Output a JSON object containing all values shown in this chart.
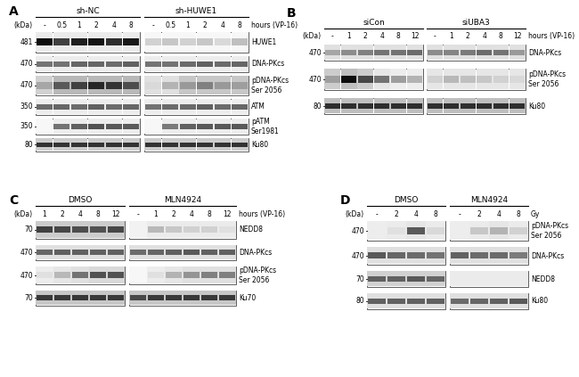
{
  "panel_A": {
    "label": "A",
    "group_labels": [
      "sh-NC",
      "sh-HUWE1"
    ],
    "time_labels": [
      "-",
      "0.5",
      "1",
      "2",
      "4",
      "8",
      "-",
      "0.5",
      "1",
      "2",
      "4",
      "8"
    ],
    "time_header": "hours (VP-16)",
    "blots": [
      {
        "kda": "481",
        "name": "HUWE1",
        "bg": [
          0.92,
          0.92,
          0.92,
          0.92,
          0.92,
          0.92,
          0.97,
          0.97,
          0.97,
          0.97,
          0.97,
          0.97
        ],
        "bands": [
          0.95,
          0.75,
          0.88,
          0.92,
          0.82,
          0.9,
          0.18,
          0.22,
          0.18,
          0.22,
          0.15,
          0.25
        ]
      },
      {
        "kda": "470",
        "name": "DNA-PKcs",
        "bg": [
          0.93,
          0.93,
          0.93,
          0.93,
          0.93,
          0.93,
          0.93,
          0.93,
          0.93,
          0.93,
          0.93,
          0.93
        ],
        "bands": [
          0.55,
          0.55,
          0.6,
          0.6,
          0.58,
          0.62,
          0.55,
          0.55,
          0.58,
          0.62,
          0.58,
          0.6
        ]
      },
      {
        "kda": "470",
        "name": "pDNA-PKcs\nSer 2056",
        "bg": [
          0.82,
          0.72,
          0.72,
          0.72,
          0.72,
          0.72,
          0.88,
          0.88,
          0.78,
          0.78,
          0.78,
          0.78
        ],
        "bands": [
          0.35,
          0.65,
          0.75,
          0.85,
          0.8,
          0.7,
          0.15,
          0.3,
          0.4,
          0.5,
          0.4,
          0.38
        ]
      },
      {
        "kda": "350",
        "name": "ATM",
        "bg": [
          0.93,
          0.93,
          0.93,
          0.93,
          0.93,
          0.93,
          0.93,
          0.93,
          0.93,
          0.93,
          0.93,
          0.93
        ],
        "bands": [
          0.58,
          0.6,
          0.58,
          0.62,
          0.58,
          0.6,
          0.55,
          0.58,
          0.58,
          0.62,
          0.58,
          0.6
        ]
      },
      {
        "kda": "350",
        "name": "pATM\nSer1981",
        "bg": [
          0.97,
          0.93,
          0.93,
          0.93,
          0.93,
          0.93,
          0.97,
          0.93,
          0.93,
          0.93,
          0.93,
          0.93
        ],
        "bands": [
          0.05,
          0.55,
          0.62,
          0.68,
          0.65,
          0.65,
          0.05,
          0.52,
          0.62,
          0.65,
          0.65,
          0.65
        ]
      },
      {
        "kda": "80",
        "name": "Ku80",
        "bg": [
          0.8,
          0.8,
          0.8,
          0.8,
          0.8,
          0.8,
          0.8,
          0.8,
          0.8,
          0.8,
          0.8,
          0.8
        ],
        "bands": [
          0.8,
          0.8,
          0.8,
          0.8,
          0.8,
          0.8,
          0.8,
          0.8,
          0.8,
          0.8,
          0.8,
          0.8
        ]
      }
    ]
  },
  "panel_B": {
    "label": "B",
    "group_labels": [
      "siCon",
      "siUBA3"
    ],
    "time_labels": [
      "-",
      "1",
      "2",
      "4",
      "8",
      "12",
      "-",
      "1",
      "2",
      "4",
      "8",
      "12"
    ],
    "time_header": "hours (VP-16)",
    "blots": [
      {
        "kda": "470",
        "name": "DNA-PKcs",
        "bg": [
          0.88,
          0.88,
          0.88,
          0.88,
          0.88,
          0.88,
          0.88,
          0.88,
          0.88,
          0.88,
          0.88,
          0.88
        ],
        "bands": [
          0.35,
          0.45,
          0.5,
          0.55,
          0.55,
          0.58,
          0.45,
          0.48,
          0.52,
          0.58,
          0.55,
          0.4
        ]
      },
      {
        "kda": "470",
        "name": "pDNA-PKcs\nSer 2056",
        "bg": [
          0.8,
          0.75,
          0.8,
          0.9,
          0.93,
          0.93,
          0.9,
          0.9,
          0.9,
          0.9,
          0.9,
          0.9
        ],
        "bands": [
          0.38,
          0.95,
          0.72,
          0.55,
          0.38,
          0.3,
          0.18,
          0.28,
          0.25,
          0.22,
          0.18,
          0.15
        ]
      },
      {
        "kda": "80",
        "name": "Ku80",
        "bg": [
          0.75,
          0.75,
          0.75,
          0.75,
          0.75,
          0.75,
          0.75,
          0.75,
          0.75,
          0.75,
          0.75,
          0.75
        ],
        "bands": [
          0.82,
          0.82,
          0.82,
          0.82,
          0.82,
          0.82,
          0.82,
          0.82,
          0.82,
          0.82,
          0.82,
          0.82
        ]
      }
    ]
  },
  "panel_C": {
    "label": "C",
    "group_labels": [
      "DMSO",
      "MLN4924"
    ],
    "time_labels": [
      "1",
      "2",
      "4",
      "8",
      "12",
      "-",
      "1",
      "2",
      "4",
      "8",
      "12"
    ],
    "time_header": "hours (VP-16)",
    "blots": [
      {
        "kda": "70",
        "name": "NEDD8",
        "bg": [
          0.8,
          0.8,
          0.8,
          0.8,
          0.8,
          0.95,
          0.92,
          0.92,
          0.92,
          0.92,
          0.92
        ],
        "bands": [
          0.75,
          0.72,
          0.7,
          0.68,
          0.72,
          0.05,
          0.28,
          0.22,
          0.18,
          0.18,
          0.12
        ]
      },
      {
        "kda": "470",
        "name": "DNA-PKcs",
        "bg": [
          0.88,
          0.88,
          0.88,
          0.88,
          0.88,
          0.88,
          0.88,
          0.88,
          0.88,
          0.88,
          0.88
        ],
        "bands": [
          0.6,
          0.62,
          0.62,
          0.62,
          0.62,
          0.58,
          0.6,
          0.62,
          0.65,
          0.62,
          0.62
        ]
      },
      {
        "kda": "470",
        "name": "pDNA-PKcs\nSer 2056",
        "bg": [
          0.93,
          0.9,
          0.88,
          0.85,
          0.85,
          0.97,
          0.93,
          0.9,
          0.88,
          0.88,
          0.88
        ],
        "bands": [
          0.12,
          0.28,
          0.55,
          0.68,
          0.68,
          0.02,
          0.12,
          0.3,
          0.42,
          0.5,
          0.5
        ]
      },
      {
        "kda": "70",
        "name": "Ku70",
        "bg": [
          0.78,
          0.78,
          0.78,
          0.78,
          0.78,
          0.78,
          0.78,
          0.78,
          0.78,
          0.78,
          0.78
        ],
        "bands": [
          0.78,
          0.78,
          0.78,
          0.78,
          0.78,
          0.72,
          0.78,
          0.78,
          0.78,
          0.78,
          0.78
        ]
      }
    ]
  },
  "panel_D": {
    "label": "D",
    "group_labels": [
      "DMSO",
      "MLN4924"
    ],
    "time_labels": [
      "-",
      "2",
      "4",
      "8",
      "-",
      "2",
      "4",
      "8"
    ],
    "time_header": "Gy",
    "blots": [
      {
        "kda": "470",
        "name": "pDNA-PKcs\nSer 2056",
        "bg": [
          0.93,
          0.92,
          0.9,
          0.92,
          0.93,
          0.92,
          0.9,
          0.92
        ],
        "bands": [
          0.05,
          0.12,
          0.65,
          0.15,
          0.05,
          0.22,
          0.3,
          0.18
        ]
      },
      {
        "kda": "470",
        "name": "DNA-PKcs",
        "bg": [
          0.88,
          0.88,
          0.88,
          0.88,
          0.88,
          0.88,
          0.88,
          0.88
        ],
        "bands": [
          0.65,
          0.6,
          0.58,
          0.55,
          0.62,
          0.58,
          0.58,
          0.52
        ]
      },
      {
        "kda": "70",
        "name": "NEDD8",
        "bg": [
          0.82,
          0.82,
          0.82,
          0.82,
          0.92,
          0.92,
          0.92,
          0.92
        ],
        "bands": [
          0.62,
          0.62,
          0.65,
          0.6,
          0.08,
          0.08,
          0.08,
          0.05
        ]
      },
      {
        "kda": "80",
        "name": "Ku80",
        "bg": [
          0.88,
          0.88,
          0.88,
          0.88,
          0.88,
          0.88,
          0.88,
          0.88
        ],
        "bands": [
          0.62,
          0.62,
          0.62,
          0.62,
          0.58,
          0.6,
          0.62,
          0.65
        ]
      }
    ]
  }
}
